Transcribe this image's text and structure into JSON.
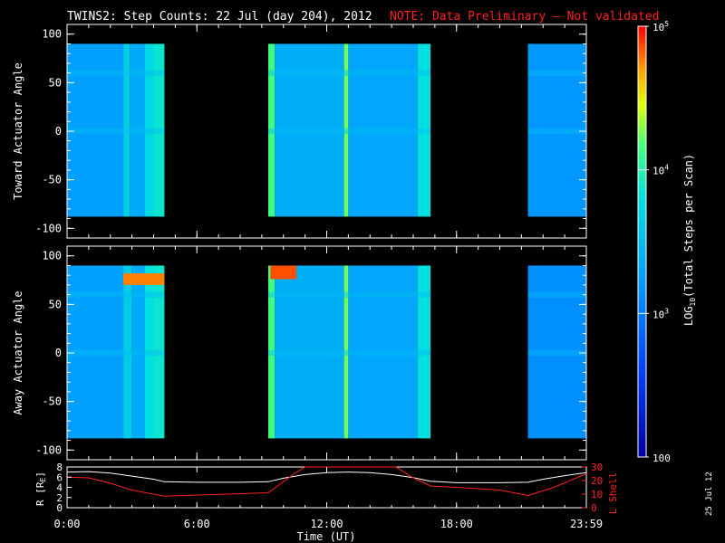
{
  "title": "TWINS2: Step Counts: 22 Jul (day 204), 2012",
  "note": "NOTE: Data Preliminary – Not validated",
  "date_stamp": "25 Jul 12",
  "colors": {
    "background": "#000000",
    "text": "#ffffff",
    "note": "#ff2020",
    "r_line": "#ffffff",
    "l_line": "#ff2020"
  },
  "colorbar": {
    "label_prefix": "LOG",
    "label_sub": "10",
    "label_suffix": "(Total Steps per Scan)",
    "ticks": [
      {
        "label_pre": "10",
        "label_exp": "5",
        "value": 100000
      },
      {
        "label_pre": "10",
        "label_exp": "4",
        "value": 10000
      },
      {
        "label_pre": "10",
        "label_exp": "3",
        "value": 1000
      },
      {
        "label_pre": "100",
        "label_exp": "",
        "value": 100
      }
    ],
    "range": [
      100,
      100000
    ],
    "scale": "log"
  },
  "chart_data": [
    {
      "type": "heatmap",
      "ylabel": "Toward Actuator Angle",
      "ylim": [
        -110,
        110
      ],
      "yticks": [
        "100",
        "50",
        "0",
        "-50",
        "-100"
      ],
      "ytick_values": [
        100,
        50,
        0,
        -50,
        -100
      ],
      "data_angle_range": [
        -88,
        90
      ],
      "xlim_hours": [
        0,
        24
      ],
      "coverage_hours": [
        [
          0.0,
          4.5
        ],
        [
          9.3,
          16.8
        ],
        [
          21.3,
          24.0
        ]
      ],
      "bands": [
        {
          "x": [
            0.0,
            2.6
          ],
          "level": 0.42
        },
        {
          "x": [
            2.6,
            2.9
          ],
          "level": 0.55
        },
        {
          "x": [
            2.9,
            3.6
          ],
          "level": 0.45
        },
        {
          "x": [
            3.6,
            4.0
          ],
          "level": 0.58
        },
        {
          "x": [
            4.0,
            4.5
          ],
          "level": 0.62
        },
        {
          "x": [
            9.3,
            9.6
          ],
          "level": 0.72
        },
        {
          "x": [
            9.6,
            12.8
          ],
          "level": 0.46
        },
        {
          "x": [
            12.8,
            13.0
          ],
          "level": 0.75
        },
        {
          "x": [
            13.0,
            16.2
          ],
          "level": 0.44
        },
        {
          "x": [
            16.2,
            16.8
          ],
          "level": 0.6
        },
        {
          "x": [
            21.3,
            24.0
          ],
          "level": 0.4
        }
      ]
    },
    {
      "type": "heatmap",
      "ylabel": "Away Actuator Angle",
      "ylim": [
        -110,
        110
      ],
      "yticks": [
        "100",
        "50",
        "0",
        "-50",
        "-100"
      ],
      "ytick_values": [
        100,
        50,
        0,
        -50,
        -100
      ],
      "data_angle_range": [
        -88,
        90
      ],
      "xlim_hours": [
        0,
        24
      ],
      "coverage_hours": [
        [
          0.0,
          4.5
        ],
        [
          9.3,
          16.8
        ],
        [
          21.3,
          24.0
        ]
      ],
      "bands": [
        {
          "x": [
            0.0,
            2.6
          ],
          "level": 0.42
        },
        {
          "x": [
            2.6,
            3.0
          ],
          "level": 0.55
        },
        {
          "x": [
            3.0,
            3.6
          ],
          "level": 0.45
        },
        {
          "x": [
            3.6,
            4.0
          ],
          "level": 0.6
        },
        {
          "x": [
            4.0,
            4.5
          ],
          "level": 0.62
        },
        {
          "x": [
            9.3,
            9.6
          ],
          "level": 0.72
        },
        {
          "x": [
            9.6,
            12.8
          ],
          "level": 0.46
        },
        {
          "x": [
            12.8,
            13.0
          ],
          "level": 0.75
        },
        {
          "x": [
            13.0,
            16.2
          ],
          "level": 0.44
        },
        {
          "x": [
            16.2,
            16.8
          ],
          "level": 0.6
        },
        {
          "x": [
            21.3,
            24.0
          ],
          "level": 0.38
        }
      ],
      "hotspots": [
        {
          "x": [
            2.6,
            4.5
          ],
          "y": [
            70,
            82
          ],
          "level": 0.92
        },
        {
          "x": [
            9.4,
            10.6
          ],
          "y": [
            76,
            90
          ],
          "level": 0.95
        }
      ]
    },
    {
      "type": "line",
      "xlabel": "Time (UT)",
      "xticks": [
        "0:00",
        "6:00",
        "12:00",
        "18:00",
        "23:59"
      ],
      "xtick_hours": [
        0,
        6,
        12,
        18,
        24
      ],
      "left_axis": {
        "label_main": "R [R",
        "label_sub": "E",
        "label_end": "]",
        "ylim": [
          0,
          8
        ],
        "ticks": [
          "8",
          "6",
          "4",
          "2",
          "0"
        ],
        "tick_values": [
          8,
          6,
          4,
          2,
          0
        ]
      },
      "right_axis": {
        "label": "L Shell",
        "ylim": [
          0,
          30
        ],
        "ticks": [
          "30",
          "20",
          "10",
          "0"
        ],
        "tick_values": [
          30,
          20,
          10,
          0
        ]
      },
      "series": [
        {
          "axis": "left",
          "x": [
            0,
            1,
            2,
            3,
            4,
            4.5,
            6,
            8,
            9.3,
            10,
            11,
            12,
            13,
            14,
            15,
            16,
            16.8,
            18,
            20,
            21.3,
            22,
            23,
            24
          ],
          "y": [
            7.0,
            7.1,
            6.8,
            6.2,
            5.6,
            5.1,
            5.0,
            5.0,
            5.1,
            5.8,
            6.5,
            6.9,
            7.0,
            6.9,
            6.5,
            5.9,
            5.2,
            4.9,
            4.9,
            5.0,
            5.6,
            6.3,
            6.9
          ]
        },
        {
          "axis": "right",
          "x": [
            0,
            1,
            2,
            3,
            4.5,
            9.3,
            10.5,
            11.0,
            15.2,
            16.0,
            16.8,
            18,
            20,
            21.3,
            22.5,
            24
          ],
          "y": [
            22.5,
            22.0,
            18,
            13,
            8.5,
            11,
            25,
            30,
            30,
            22,
            16,
            15,
            13,
            9,
            15,
            25
          ]
        }
      ]
    }
  ]
}
